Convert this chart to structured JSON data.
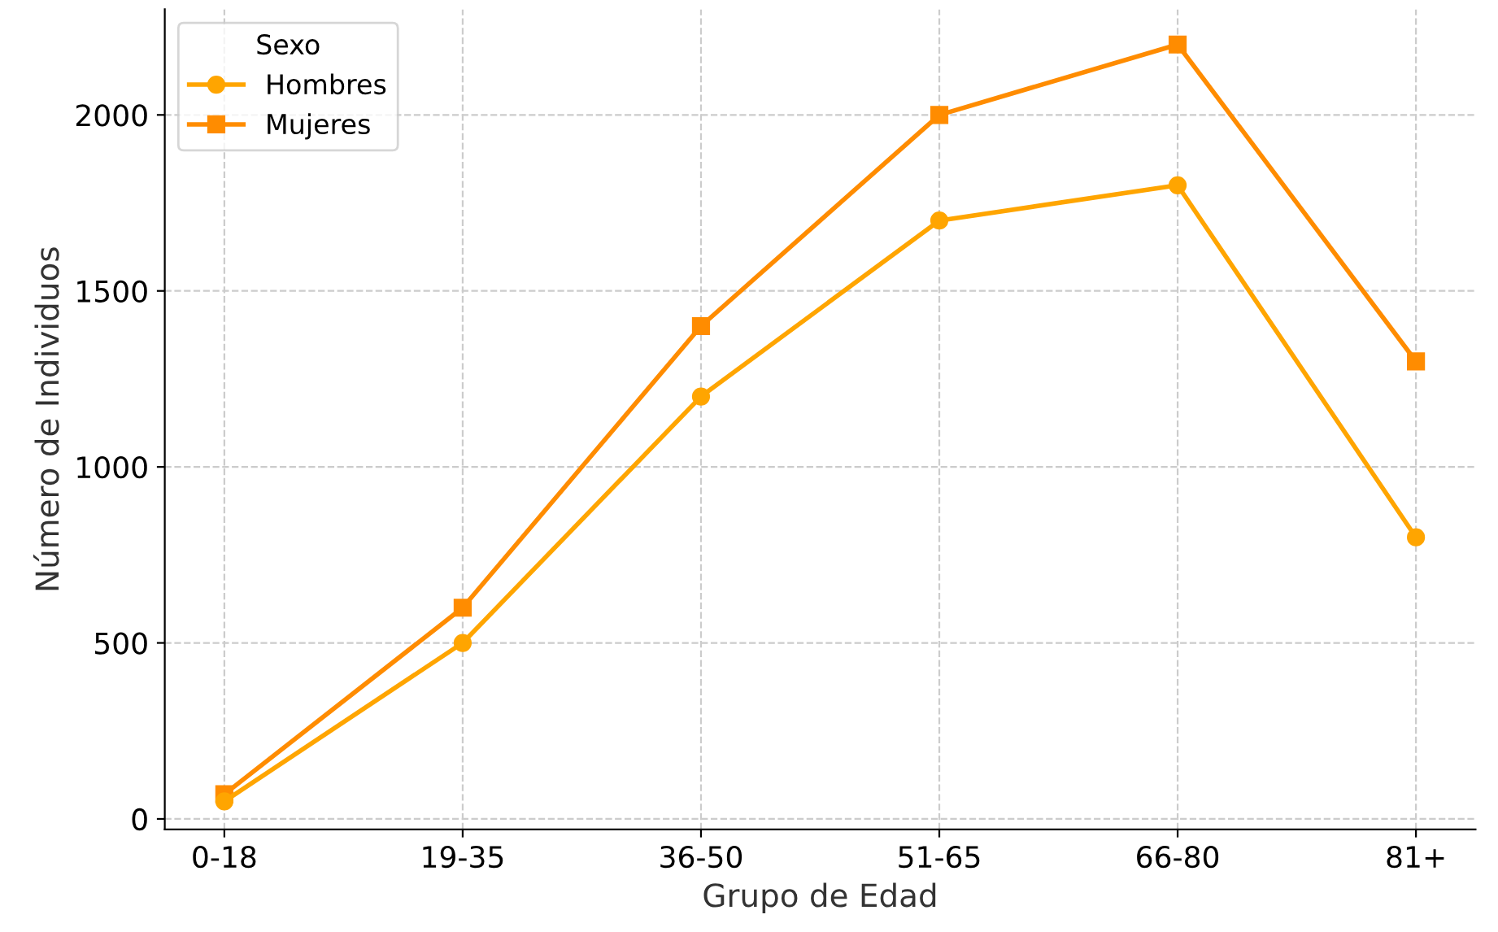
{
  "chart_data": {
    "type": "line",
    "xlabel": "Grupo de Edad",
    "ylabel": "Número de Individuos",
    "legend_title": "Sexo",
    "categories": [
      "0-18",
      "19-35",
      "36-50",
      "51-65",
      "66-80",
      "81+"
    ],
    "series": [
      {
        "name": "Hombres",
        "color": "#ffa500",
        "marker": "circle",
        "values": [
          50,
          500,
          1200,
          1700,
          1800,
          800
        ]
      },
      {
        "name": "Mujeres",
        "color": "#ff8c00",
        "marker": "square",
        "values": [
          70,
          600,
          1400,
          2000,
          2200,
          1300
        ]
      }
    ],
    "ylim": [
      -30,
      2300
    ],
    "yticks": [
      0,
      500,
      1000,
      1500,
      2000
    ],
    "grid": true,
    "legend": "top left",
    "line_style": "solid"
  }
}
